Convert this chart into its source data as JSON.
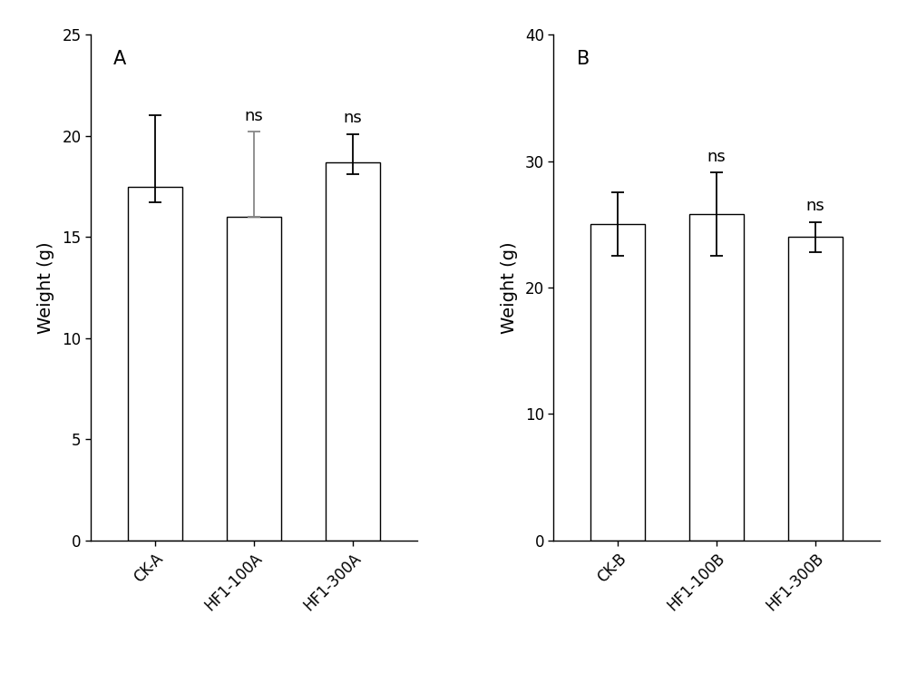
{
  "panel_A": {
    "categories": [
      "CK-A",
      "HF1-100A",
      "HF1-300A"
    ],
    "values": [
      17.5,
      16.0,
      18.7
    ],
    "yerr_upper": [
      3.5,
      4.2,
      1.4
    ],
    "yerr_lower": [
      0.8,
      0.0,
      0.6
    ],
    "ns_labels": [
      null,
      "ns",
      "ns"
    ],
    "ylabel": "Weight (g)",
    "ylim": [
      0,
      25
    ],
    "yticks": [
      0,
      5,
      10,
      15,
      20,
      25
    ],
    "panel_label": "A",
    "error_colors": [
      "#000000",
      "#888888",
      "#000000"
    ]
  },
  "panel_B": {
    "categories": [
      "CK-B",
      "HF1-100B",
      "HF1-300B"
    ],
    "values": [
      25.0,
      25.8,
      24.0
    ],
    "yerr_upper": [
      2.5,
      3.3,
      1.2
    ],
    "yerr_lower": [
      2.5,
      3.3,
      1.2
    ],
    "ns_labels": [
      null,
      "ns",
      "ns"
    ],
    "ylabel": "Weight (g)",
    "ylim": [
      0,
      40
    ],
    "yticks": [
      0,
      10,
      20,
      30,
      40
    ],
    "panel_label": "B",
    "error_colors": [
      "#000000",
      "#000000",
      "#000000"
    ]
  },
  "bar_color": "#ffffff",
  "bar_edgecolor": "#000000",
  "bar_linewidth": 1.0,
  "bar_width": 0.55,
  "ns_fontsize": 13,
  "ns_fontweight": "normal",
  "ylabel_fontsize": 14,
  "tick_fontsize": 12,
  "panel_label_fontsize": 15,
  "background_color": "#ffffff",
  "figsize": [
    10.0,
    7.64
  ],
  "dpi": 100
}
